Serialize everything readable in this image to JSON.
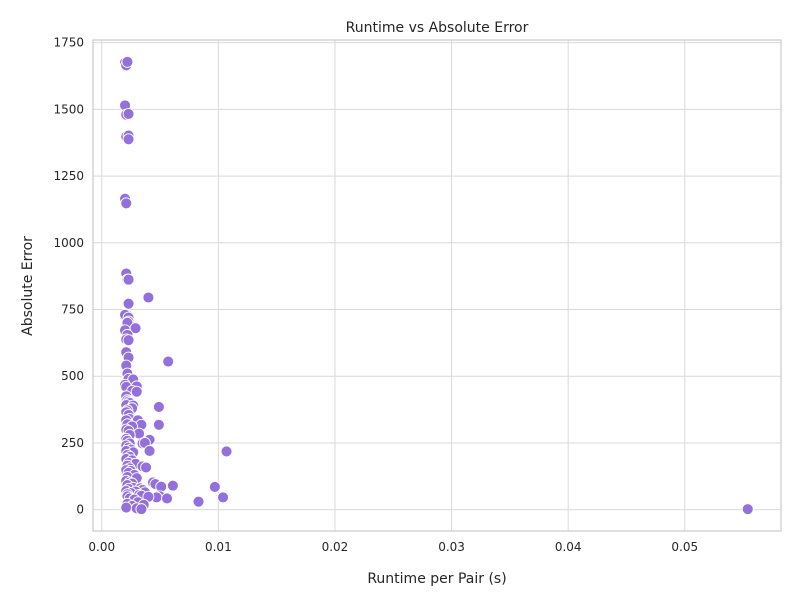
{
  "chart_data": {
    "type": "scatter",
    "title": "Runtime vs Absolute Error",
    "xlabel": "Runtime per Pair (s)",
    "ylabel": "Absolute Error",
    "xlim": [
      -0.00075,
      0.05825
    ],
    "ylim": [
      -80,
      1760
    ],
    "xticks": [
      0.0,
      0.01,
      0.02,
      0.03,
      0.04,
      0.05
    ],
    "xtick_labels": [
      "0.00",
      "0.01",
      "0.02",
      "0.03",
      "0.04",
      "0.05"
    ],
    "yticks": [
      0,
      250,
      500,
      750,
      1000,
      1250,
      1500,
      1750
    ],
    "ytick_labels": [
      "0",
      "250",
      "500",
      "750",
      "1000",
      "1250",
      "1500",
      "1750"
    ],
    "grid": true,
    "legend": "none",
    "point_color": "#9370db",
    "points": [
      [
        0.002,
        1675
      ],
      [
        0.0021,
        1665
      ],
      [
        0.0022,
        1678
      ],
      [
        0.002,
        1515
      ],
      [
        0.0021,
        1480
      ],
      [
        0.0023,
        1483
      ],
      [
        0.0021,
        1398
      ],
      [
        0.0023,
        1402
      ],
      [
        0.0023,
        1388
      ],
      [
        0.002,
        1165
      ],
      [
        0.0021,
        1148
      ],
      [
        0.0021,
        885
      ],
      [
        0.0022,
        862
      ],
      [
        0.0023,
        862
      ],
      [
        0.004,
        795
      ],
      [
        0.0023,
        772
      ],
      [
        0.0022,
        728
      ],
      [
        0.002,
        730
      ],
      [
        0.0023,
        720
      ],
      [
        0.0023,
        705
      ],
      [
        0.0024,
        690
      ],
      [
        0.0022,
        700
      ],
      [
        0.002,
        672
      ],
      [
        0.0029,
        680
      ],
      [
        0.0022,
        655
      ],
      [
        0.0021,
        638
      ],
      [
        0.0023,
        635
      ],
      [
        0.0021,
        590
      ],
      [
        0.0023,
        570
      ],
      [
        0.0057,
        555
      ],
      [
        0.0021,
        540
      ],
      [
        0.0022,
        510
      ],
      [
        0.0023,
        490
      ],
      [
        0.0027,
        488
      ],
      [
        0.002,
        468
      ],
      [
        0.0021,
        460
      ],
      [
        0.003,
        462
      ],
      [
        0.0026,
        445
      ],
      [
        0.003,
        442
      ],
      [
        0.0021,
        425
      ],
      [
        0.0022,
        410
      ],
      [
        0.0023,
        405
      ],
      [
        0.0024,
        400
      ],
      [
        0.0021,
        392
      ],
      [
        0.0027,
        390
      ],
      [
        0.0049,
        385
      ],
      [
        0.0026,
        380
      ],
      [
        0.0022,
        372
      ],
      [
        0.0021,
        365
      ],
      [
        0.0023,
        355
      ],
      [
        0.0024,
        340
      ],
      [
        0.0021,
        335
      ],
      [
        0.0031,
        335
      ],
      [
        0.0022,
        320
      ],
      [
        0.0034,
        318
      ],
      [
        0.0049,
        318
      ],
      [
        0.0026,
        312
      ],
      [
        0.0021,
        300
      ],
      [
        0.0023,
        295
      ],
      [
        0.0032,
        285
      ],
      [
        0.0024,
        280
      ],
      [
        0.0021,
        265
      ],
      [
        0.0041,
        262
      ],
      [
        0.0022,
        258
      ],
      [
        0.0035,
        248
      ],
      [
        0.0024,
        248
      ],
      [
        0.0037,
        250
      ],
      [
        0.0021,
        240
      ],
      [
        0.0023,
        232
      ],
      [
        0.0025,
        225
      ],
      [
        0.0021,
        220
      ],
      [
        0.0027,
        215
      ],
      [
        0.0041,
        220
      ],
      [
        0.0107,
        218
      ],
      [
        0.0022,
        205
      ],
      [
        0.0024,
        198
      ],
      [
        0.0021,
        190
      ],
      [
        0.0026,
        185
      ],
      [
        0.0023,
        175
      ],
      [
        0.0029,
        172
      ],
      [
        0.0022,
        165
      ],
      [
        0.0035,
        162
      ],
      [
        0.0038,
        158
      ],
      [
        0.0024,
        155
      ],
      [
        0.0021,
        148
      ],
      [
        0.0025,
        145
      ],
      [
        0.0023,
        138
      ],
      [
        0.0028,
        130
      ],
      [
        0.0022,
        122
      ],
      [
        0.003,
        118
      ],
      [
        0.0021,
        108
      ],
      [
        0.0024,
        102
      ],
      [
        0.0044,
        102
      ],
      [
        0.0026,
        98
      ],
      [
        0.0046,
        96
      ],
      [
        0.0022,
        92
      ],
      [
        0.0061,
        90
      ],
      [
        0.0051,
        86
      ],
      [
        0.0097,
        85
      ],
      [
        0.0027,
        82
      ],
      [
        0.0033,
        80
      ],
      [
        0.0023,
        78
      ],
      [
        0.0035,
        74
      ],
      [
        0.0021,
        70
      ],
      [
        0.0029,
        68
      ],
      [
        0.0037,
        65
      ],
      [
        0.0025,
        62
      ],
      [
        0.0022,
        58
      ],
      [
        0.0032,
        55
      ],
      [
        0.0034,
        52
      ],
      [
        0.005,
        50
      ],
      [
        0.0022,
        50
      ],
      [
        0.0047,
        46
      ],
      [
        0.004,
        48
      ],
      [
        0.0104,
        46
      ],
      [
        0.0056,
        42
      ],
      [
        0.0024,
        42
      ],
      [
        0.0028,
        38
      ],
      [
        0.0083,
        30
      ],
      [
        0.0031,
        28
      ],
      [
        0.0022,
        22
      ],
      [
        0.0036,
        18
      ],
      [
        0.0026,
        14
      ],
      [
        0.0021,
        8
      ],
      [
        0.003,
        5
      ],
      [
        0.0034,
        2
      ],
      [
        0.0554,
        2
      ]
    ]
  }
}
